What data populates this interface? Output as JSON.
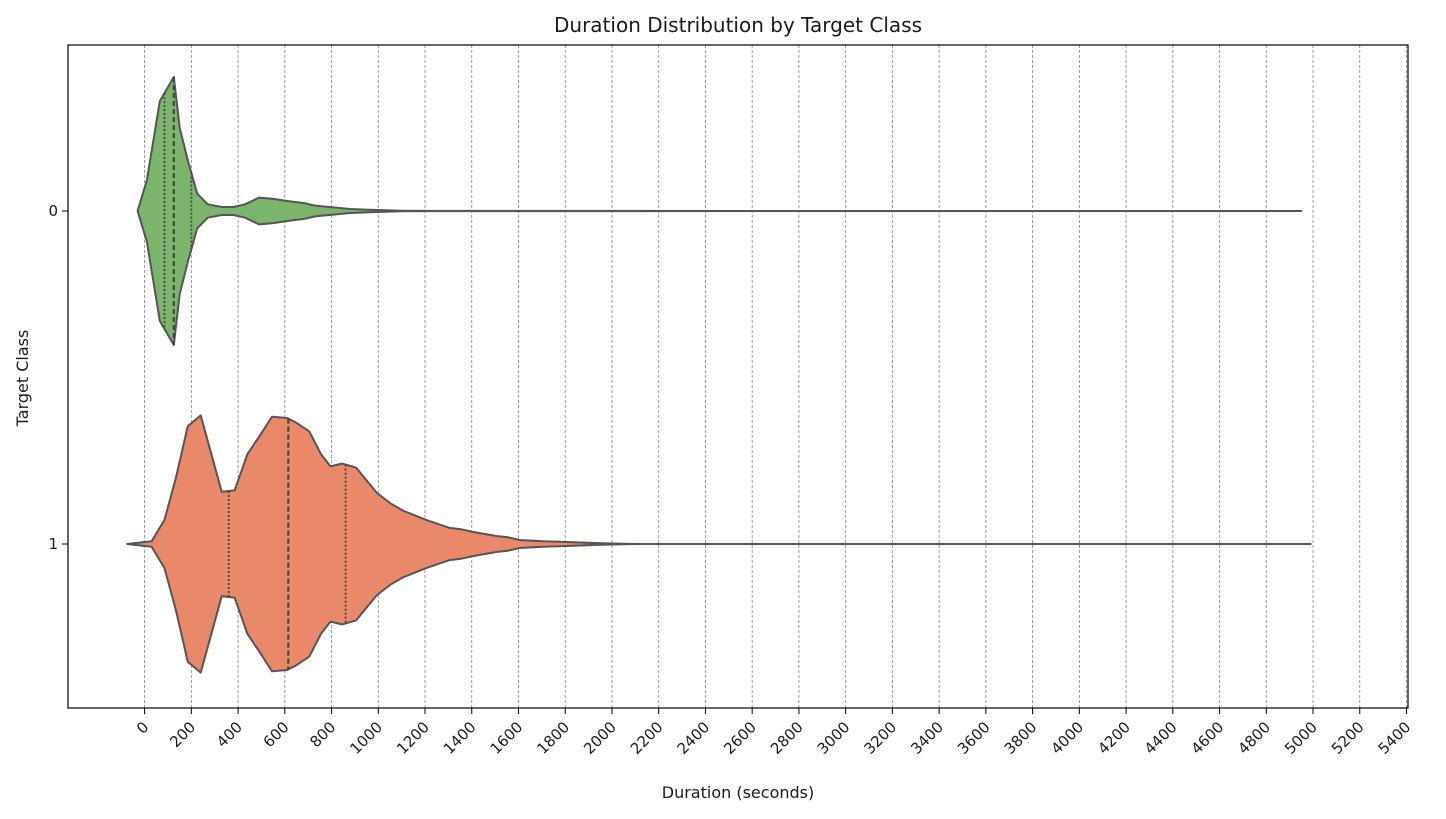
{
  "chart_data": {
    "type": "violin",
    "title": "Duration Distribution by Target Class",
    "xlabel": "Duration (seconds)",
    "ylabel": "Target Class",
    "xlim": [
      -330,
      5400
    ],
    "xticks": [
      0,
      200,
      400,
      600,
      800,
      1000,
      1200,
      1400,
      1600,
      1800,
      2000,
      2200,
      2400,
      2600,
      2800,
      3000,
      3200,
      3400,
      3600,
      3800,
      4000,
      4200,
      4400,
      4600,
      4800,
      5000,
      5200,
      5400
    ],
    "grid": {
      "x": true,
      "y": false,
      "style": "dashed"
    },
    "orient": "horizontal",
    "categories": [
      "0",
      "1"
    ],
    "series": [
      {
        "category": "0",
        "color": "#7bb56b",
        "range": [
          -30,
          4950
        ],
        "quartiles": [
          85,
          125,
          200
        ],
        "density_profile": [
          [
            -30,
            0.0
          ],
          [
            10,
            0.23
          ],
          [
            65,
            0.82
          ],
          [
            125,
            1.0
          ],
          [
            150,
            0.62
          ],
          [
            185,
            0.38
          ],
          [
            225,
            0.13
          ],
          [
            270,
            0.05
          ],
          [
            330,
            0.03
          ],
          [
            380,
            0.03
          ],
          [
            430,
            0.05
          ],
          [
            490,
            0.1
          ],
          [
            550,
            0.09
          ],
          [
            630,
            0.07
          ],
          [
            680,
            0.06
          ],
          [
            730,
            0.04
          ],
          [
            790,
            0.03
          ],
          [
            880,
            0.015
          ],
          [
            960,
            0.01
          ],
          [
            1100,
            0.002
          ],
          [
            1200,
            0.001
          ],
          [
            4950,
            0.0
          ]
        ]
      },
      {
        "category": "1",
        "color": "#e9896a",
        "range": [
          -75,
          4990
        ],
        "quartiles": [
          360,
          615,
          860
        ],
        "density_profile": [
          [
            -75,
            0.0
          ],
          [
            30,
            0.02
          ],
          [
            85,
            0.18
          ],
          [
            135,
            0.5
          ],
          [
            185,
            0.88
          ],
          [
            240,
            0.96
          ],
          [
            330,
            0.39
          ],
          [
            385,
            0.4
          ],
          [
            440,
            0.67
          ],
          [
            505,
            0.84
          ],
          [
            545,
            0.95
          ],
          [
            610,
            0.94
          ],
          [
            645,
            0.91
          ],
          [
            705,
            0.84
          ],
          [
            755,
            0.67
          ],
          [
            795,
            0.58
          ],
          [
            845,
            0.6
          ],
          [
            905,
            0.57
          ],
          [
            995,
            0.38
          ],
          [
            1055,
            0.3
          ],
          [
            1105,
            0.25
          ],
          [
            1205,
            0.18
          ],
          [
            1255,
            0.15
          ],
          [
            1305,
            0.12
          ],
          [
            1355,
            0.11
          ],
          [
            1405,
            0.09
          ],
          [
            1505,
            0.06
          ],
          [
            1555,
            0.05
          ],
          [
            1605,
            0.03
          ],
          [
            1705,
            0.02
          ],
          [
            1805,
            0.015
          ],
          [
            1955,
            0.005
          ],
          [
            2100,
            0.0
          ],
          [
            4990,
            0.0
          ]
        ]
      }
    ]
  }
}
